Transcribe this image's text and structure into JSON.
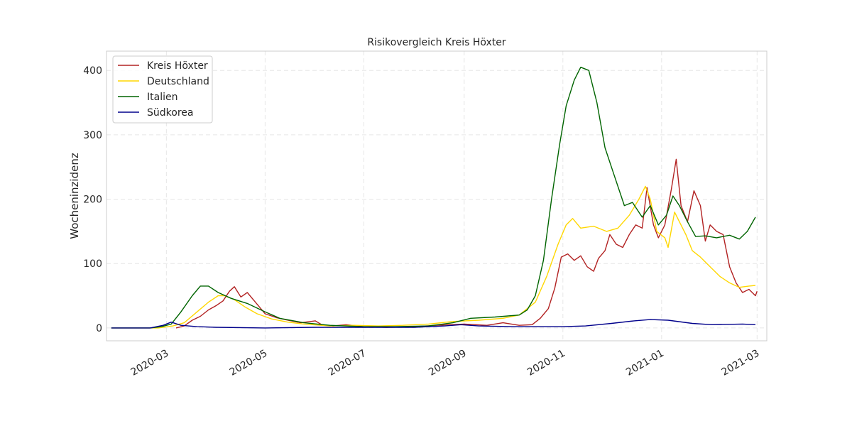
{
  "chart_data": {
    "type": "line",
    "title": "Risikovergleich Kreis Höxter",
    "xlabel": "",
    "ylabel": "Wocheninzidenz",
    "x_range": [
      "2020-01-24",
      "2021-03-07"
    ],
    "ylim": [
      -20,
      430
    ],
    "x_ticks": [
      "2020-03",
      "2020-05",
      "2020-07",
      "2020-09",
      "2020-11",
      "2021-01",
      "2021-03"
    ],
    "x_tick_dates": [
      "2020-03-01",
      "2020-05-01",
      "2020-07-01",
      "2020-09-01",
      "2020-11-01",
      "2021-01-01",
      "2021-03-01"
    ],
    "y_ticks": [
      0,
      100,
      200,
      300,
      400
    ],
    "grid": true,
    "legend_position": "upper-left",
    "series": [
      {
        "name": "Kreis Höxter",
        "color": "#b22222",
        "points": [
          [
            "2020-03-07",
            0
          ],
          [
            "2020-03-12",
            3
          ],
          [
            "2020-03-17",
            12
          ],
          [
            "2020-03-22",
            18
          ],
          [
            "2020-03-27",
            28
          ],
          [
            "2020-04-01",
            35
          ],
          [
            "2020-04-05",
            42
          ],
          [
            "2020-04-09",
            57
          ],
          [
            "2020-04-12",
            64
          ],
          [
            "2020-04-16",
            48
          ],
          [
            "2020-04-20",
            55
          ],
          [
            "2020-04-25",
            40
          ],
          [
            "2020-05-01",
            22
          ],
          [
            "2020-05-08",
            16
          ],
          [
            "2020-05-15",
            12
          ],
          [
            "2020-05-23",
            8
          ],
          [
            "2020-06-01",
            11
          ],
          [
            "2020-06-05",
            5
          ],
          [
            "2020-06-12",
            3
          ],
          [
            "2020-06-20",
            5
          ],
          [
            "2020-07-01",
            2
          ],
          [
            "2020-07-15",
            1
          ],
          [
            "2020-08-01",
            2
          ],
          [
            "2020-08-15",
            4
          ],
          [
            "2020-09-01",
            6
          ],
          [
            "2020-09-15",
            4
          ],
          [
            "2020-09-25",
            8
          ],
          [
            "2020-10-05",
            4
          ],
          [
            "2020-10-13",
            5
          ],
          [
            "2020-10-18",
            15
          ],
          [
            "2020-10-23",
            30
          ],
          [
            "2020-10-27",
            62
          ],
          [
            "2020-10-31",
            110
          ],
          [
            "2020-11-04",
            115
          ],
          [
            "2020-11-08",
            105
          ],
          [
            "2020-11-12",
            112
          ],
          [
            "2020-11-16",
            95
          ],
          [
            "2020-11-20",
            88
          ],
          [
            "2020-11-23",
            108
          ],
          [
            "2020-11-27",
            120
          ],
          [
            "2020-11-30",
            145
          ],
          [
            "2020-12-04",
            130
          ],
          [
            "2020-12-08",
            125
          ],
          [
            "2020-12-12",
            145
          ],
          [
            "2020-12-16",
            160
          ],
          [
            "2020-12-20",
            155
          ],
          [
            "2020-12-23",
            218
          ],
          [
            "2020-12-27",
            160
          ],
          [
            "2020-12-30",
            140
          ],
          [
            "2021-01-03",
            160
          ],
          [
            "2021-01-07",
            215
          ],
          [
            "2021-01-10",
            262
          ],
          [
            "2021-01-13",
            190
          ],
          [
            "2021-01-17",
            165
          ],
          [
            "2021-01-21",
            213
          ],
          [
            "2021-01-25",
            190
          ],
          [
            "2021-01-28",
            135
          ],
          [
            "2021-01-31",
            160
          ],
          [
            "2021-02-04",
            150
          ],
          [
            "2021-02-08",
            145
          ],
          [
            "2021-02-12",
            95
          ],
          [
            "2021-02-16",
            70
          ],
          [
            "2021-02-20",
            55
          ],
          [
            "2021-02-24",
            60
          ],
          [
            "2021-02-28",
            50
          ],
          [
            "2021-03-01",
            57
          ]
        ]
      },
      {
        "name": "Deutschland",
        "color": "#ffd700",
        "points": [
          [
            "2020-01-27",
            0
          ],
          [
            "2020-02-25",
            0
          ],
          [
            "2020-03-05",
            3
          ],
          [
            "2020-03-12",
            8
          ],
          [
            "2020-03-20",
            25
          ],
          [
            "2020-03-27",
            40
          ],
          [
            "2020-04-02",
            50
          ],
          [
            "2020-04-06",
            50
          ],
          [
            "2020-04-12",
            44
          ],
          [
            "2020-04-19",
            32
          ],
          [
            "2020-04-26",
            22
          ],
          [
            "2020-05-05",
            14
          ],
          [
            "2020-05-15",
            9
          ],
          [
            "2020-05-25",
            6
          ],
          [
            "2020-06-10",
            3
          ],
          [
            "2020-06-25",
            4
          ],
          [
            "2020-07-10",
            3
          ],
          [
            "2020-07-25",
            4
          ],
          [
            "2020-08-10",
            6
          ],
          [
            "2020-08-25",
            10
          ],
          [
            "2020-09-10",
            12
          ],
          [
            "2020-09-25",
            15
          ],
          [
            "2020-10-05",
            20
          ],
          [
            "2020-10-15",
            40
          ],
          [
            "2020-10-22",
            80
          ],
          [
            "2020-10-29",
            130
          ],
          [
            "2020-11-03",
            160
          ],
          [
            "2020-11-07",
            170
          ],
          [
            "2020-11-12",
            155
          ],
          [
            "2020-11-20",
            158
          ],
          [
            "2020-11-28",
            150
          ],
          [
            "2020-12-05",
            155
          ],
          [
            "2020-12-12",
            175
          ],
          [
            "2020-12-18",
            200
          ],
          [
            "2020-12-22",
            220
          ],
          [
            "2020-12-25",
            200
          ],
          [
            "2020-12-29",
            150
          ],
          [
            "2021-01-03",
            140
          ],
          [
            "2021-01-05",
            125
          ],
          [
            "2021-01-09",
            180
          ],
          [
            "2021-01-12",
            165
          ],
          [
            "2021-01-16",
            145
          ],
          [
            "2021-01-20",
            120
          ],
          [
            "2021-01-25",
            110
          ],
          [
            "2021-01-31",
            95
          ],
          [
            "2021-02-06",
            80
          ],
          [
            "2021-02-12",
            70
          ],
          [
            "2021-02-18",
            63
          ],
          [
            "2021-02-24",
            65
          ],
          [
            "2021-02-28",
            66
          ]
        ]
      },
      {
        "name": "Italien",
        "color": "#006400",
        "points": [
          [
            "2020-01-27",
            0
          ],
          [
            "2020-02-20",
            0
          ],
          [
            "2020-02-27",
            2
          ],
          [
            "2020-03-04",
            6
          ],
          [
            "2020-03-10",
            25
          ],
          [
            "2020-03-17",
            50
          ],
          [
            "2020-03-22",
            65
          ],
          [
            "2020-03-27",
            65
          ],
          [
            "2020-04-02",
            55
          ],
          [
            "2020-04-10",
            46
          ],
          [
            "2020-04-20",
            38
          ],
          [
            "2020-05-01",
            25
          ],
          [
            "2020-05-10",
            15
          ],
          [
            "2020-05-25",
            8
          ],
          [
            "2020-06-10",
            4
          ],
          [
            "2020-07-01",
            2
          ],
          [
            "2020-07-20",
            2
          ],
          [
            "2020-08-10",
            3
          ],
          [
            "2020-08-25",
            8
          ],
          [
            "2020-09-05",
            15
          ],
          [
            "2020-09-20",
            17
          ],
          [
            "2020-10-05",
            20
          ],
          [
            "2020-10-10",
            28
          ],
          [
            "2020-10-15",
            50
          ],
          [
            "2020-10-20",
            105
          ],
          [
            "2020-10-25",
            200
          ],
          [
            "2020-10-30",
            285
          ],
          [
            "2020-11-03",
            345
          ],
          [
            "2020-11-08",
            385
          ],
          [
            "2020-11-12",
            405
          ],
          [
            "2020-11-17",
            400
          ],
          [
            "2020-11-22",
            350
          ],
          [
            "2020-11-27",
            280
          ],
          [
            "2020-12-03",
            235
          ],
          [
            "2020-12-09",
            190
          ],
          [
            "2020-12-14",
            195
          ],
          [
            "2020-12-20",
            172
          ],
          [
            "2020-12-25",
            190
          ],
          [
            "2020-12-30",
            160
          ],
          [
            "2021-01-04",
            175
          ],
          [
            "2021-01-08",
            205
          ],
          [
            "2021-01-12",
            190
          ],
          [
            "2021-01-17",
            165
          ],
          [
            "2021-01-22",
            142
          ],
          [
            "2021-01-28",
            143
          ],
          [
            "2021-02-04",
            140
          ],
          [
            "2021-02-12",
            144
          ],
          [
            "2021-02-18",
            138
          ],
          [
            "2021-02-23",
            150
          ],
          [
            "2021-02-28",
            172
          ]
        ]
      },
      {
        "name": "Südkorea",
        "color": "#00008b",
        "points": [
          [
            "2020-01-27",
            0
          ],
          [
            "2020-02-20",
            0
          ],
          [
            "2020-02-28",
            4
          ],
          [
            "2020-03-04",
            9
          ],
          [
            "2020-03-10",
            4
          ],
          [
            "2020-03-20",
            2
          ],
          [
            "2020-04-01",
            1
          ],
          [
            "2020-05-01",
            0
          ],
          [
            "2020-06-01",
            1
          ],
          [
            "2020-07-01",
            1
          ],
          [
            "2020-08-01",
            1
          ],
          [
            "2020-08-20",
            3
          ],
          [
            "2020-08-30",
            5
          ],
          [
            "2020-09-10",
            3
          ],
          [
            "2020-10-01",
            2
          ],
          [
            "2020-11-01",
            2
          ],
          [
            "2020-11-15",
            3
          ],
          [
            "2020-12-01",
            7
          ],
          [
            "2020-12-15",
            11
          ],
          [
            "2020-12-25",
            13
          ],
          [
            "2021-01-05",
            12
          ],
          [
            "2021-01-20",
            7
          ],
          [
            "2021-02-01",
            5
          ],
          [
            "2021-02-20",
            6
          ],
          [
            "2021-02-28",
            5
          ]
        ]
      }
    ]
  }
}
